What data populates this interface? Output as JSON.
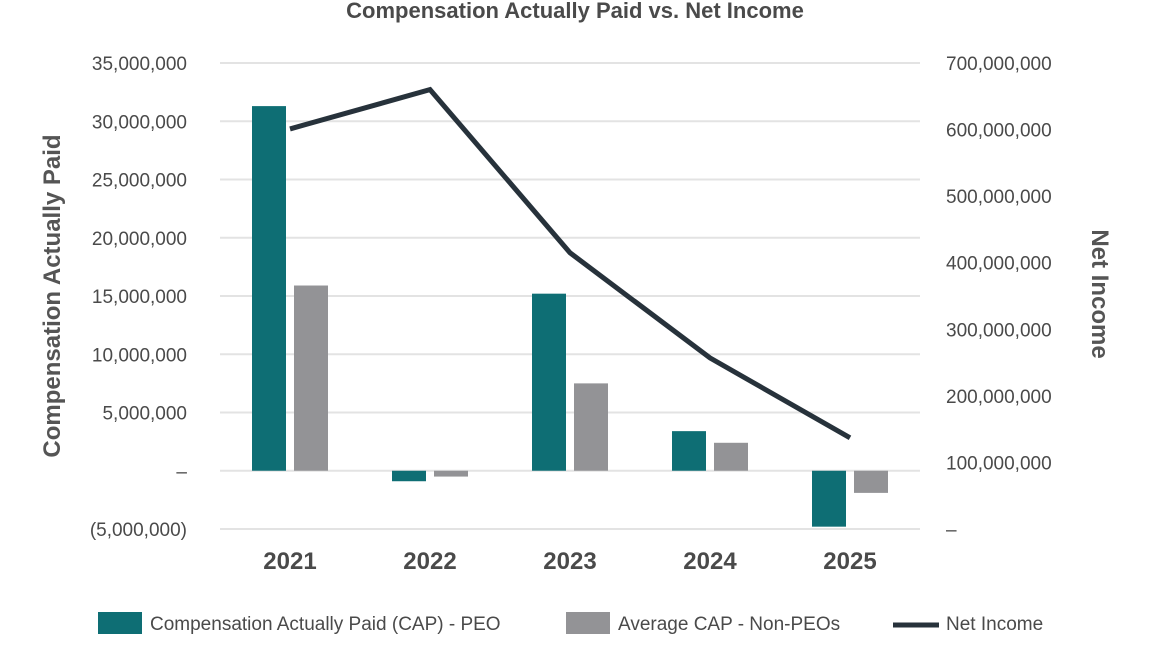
{
  "chart_data": {
    "type": "bar",
    "title": "Compensation Actually Paid vs. Net Income",
    "ylabel": "Compensation Actually Paid",
    "y2label": "Net Income",
    "categories": [
      "2021",
      "2022",
      "2023",
      "2024",
      "2025"
    ],
    "ylim": [
      -5000000,
      35000000
    ],
    "y2lim": [
      0,
      700000000
    ],
    "yticks": [
      -5000000,
      0,
      5000000,
      10000000,
      15000000,
      20000000,
      25000000,
      30000000,
      35000000
    ],
    "yticklabels": [
      "(5,000,000)",
      "–",
      "5,000,000",
      "10,000,000",
      "15,000,000",
      "20,000,000",
      "25,000,000",
      "30,000,000",
      "35,000,000"
    ],
    "y2ticks": [
      0,
      100000000,
      200000000,
      300000000,
      400000000,
      500000000,
      600000000,
      700000000
    ],
    "y2ticklabels": [
      "–",
      "100,000,000",
      "200,000,000",
      "300,000,000",
      "400,000,000",
      "500,000,000",
      "600,000,000",
      "700,000,000"
    ],
    "grid": true,
    "legend_position": "bottom",
    "series": [
      {
        "name": "Compensation Actually Paid (CAP) - PEO",
        "kind": "bar",
        "axis": "left",
        "color": "#0e6e74",
        "values": [
          31300000,
          -900000,
          15200000,
          3400000,
          -4800000
        ]
      },
      {
        "name": "Average CAP - Non-PEOs",
        "kind": "bar",
        "axis": "left",
        "color": "#939396",
        "values": [
          15900000,
          -500000,
          7500000,
          2400000,
          -1900000
        ]
      },
      {
        "name": "Net Income",
        "kind": "line",
        "axis": "right",
        "color": "#27323b",
        "values": [
          601000000,
          660000000,
          415000000,
          257000000,
          137000000
        ]
      }
    ]
  }
}
